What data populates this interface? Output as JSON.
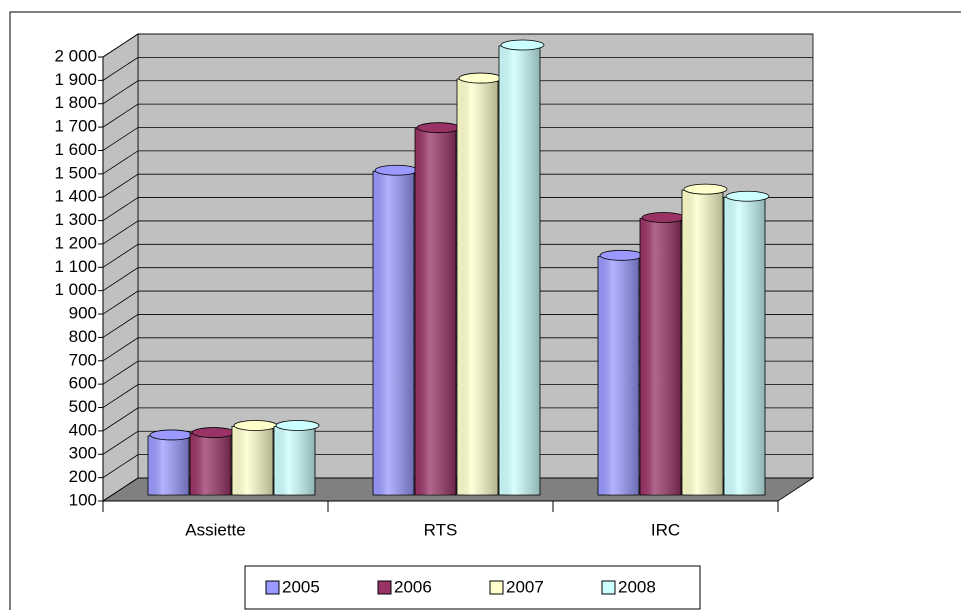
{
  "chart_data": {
    "type": "bar3d",
    "categories": [
      "Assiette",
      "RTS",
      "IRC"
    ],
    "series": [
      {
        "name": "2005",
        "color": "#9999ff",
        "values": [
          350,
          1470,
          1110
        ]
      },
      {
        "name": "2006",
        "color": "#993366",
        "values": [
          360,
          1650,
          1270
        ]
      },
      {
        "name": "2007",
        "color": "#ffffcc",
        "values": [
          390,
          1860,
          1390
        ]
      },
      {
        "name": "2008",
        "color": "#ccffff",
        "values": [
          390,
          2000,
          1360
        ]
      }
    ],
    "ylim": [
      100,
      2000
    ],
    "yticks": [
      100,
      200,
      300,
      400,
      500,
      600,
      700,
      800,
      900,
      {
        "value": 1000,
        "label": "1 000"
      },
      {
        "value": 1100,
        "label": "1 100"
      },
      {
        "value": 1200,
        "label": "1 200"
      },
      {
        "value": 1300,
        "label": "1 300"
      },
      {
        "value": 1400,
        "label": "1 400"
      },
      {
        "value": 1500,
        "label": "1 500"
      },
      {
        "value": 1600,
        "label": "1 600"
      },
      {
        "value": 1700,
        "label": "1 700"
      },
      {
        "value": 1800,
        "label": "1 800"
      },
      {
        "value": 1900,
        "label": "1 900"
      },
      {
        "value": 2000,
        "label": "2 000"
      }
    ],
    "grid": true,
    "legend": "bottom"
  }
}
